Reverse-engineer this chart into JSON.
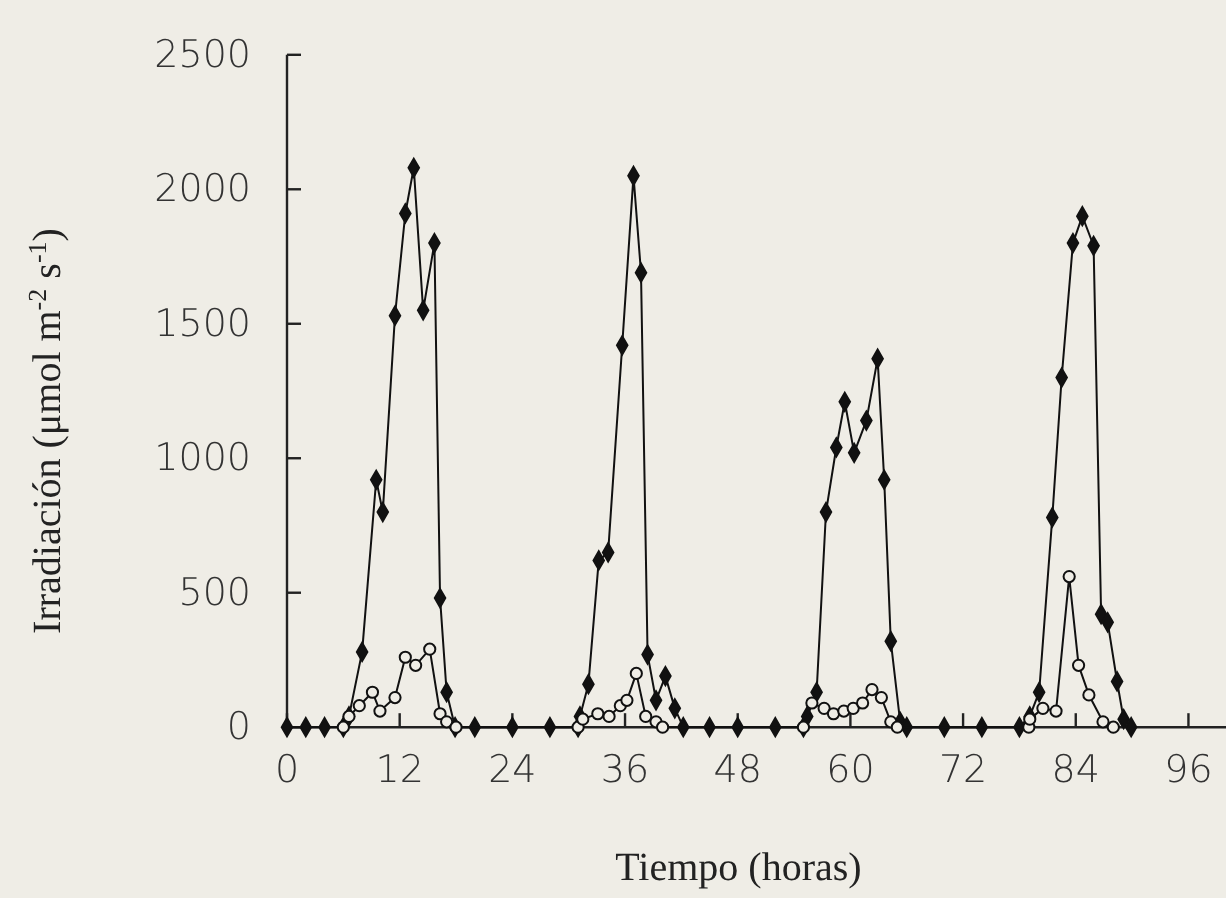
{
  "chart_data": {
    "type": "line",
    "xlabel": "Tiempo (horas)",
    "ylabel": "Irradiación (μmol m$^{-2}$ s$^{-1}$)",
    "xlim": [
      0,
      100
    ],
    "xticks": [
      0,
      12,
      24,
      36,
      48,
      60,
      72,
      84,
      96
    ],
    "ylim": [
      0,
      2500
    ],
    "yticks": [
      0,
      500,
      1000,
      1500,
      2000,
      2500
    ],
    "grid": false,
    "line_style": "solid",
    "series": [
      {
        "color": "#111111",
        "marker": "diamond",
        "x": [
          0,
          2,
          4,
          6,
          6.6,
          8.0,
          9.5,
          10.2,
          11.5,
          12.6,
          13.5,
          14.5,
          15.7,
          16.3,
          17.0,
          17.9,
          20,
          24,
          28,
          31,
          31.2,
          32.1,
          33.2,
          34.2,
          35.7,
          36.9,
          37.7,
          38.4,
          39.3,
          40.3,
          41.3,
          42.2,
          45,
          48,
          52,
          55,
          55.4,
          56.4,
          57.4,
          58.5,
          59.4,
          60.4,
          61.7,
          62.9,
          63.6,
          64.3,
          65.3,
          66,
          70,
          74,
          78,
          79.1,
          80.1,
          81.5,
          82.5,
          83.7,
          84.7,
          85.9,
          86.7,
          87.4,
          88.4,
          89.1,
          89.9
        ],
        "values": [
          0,
          0,
          0,
          0,
          40,
          280,
          920,
          800,
          1530,
          1910,
          2080,
          1550,
          1800,
          480,
          130,
          0,
          0,
          0,
          0,
          0,
          40,
          160,
          620,
          650,
          1420,
          2050,
          1690,
          270,
          100,
          190,
          70,
          0,
          0,
          0,
          0,
          0,
          40,
          130,
          800,
          1040,
          1210,
          1020,
          1140,
          1370,
          920,
          320,
          20,
          0,
          0,
          0,
          0,
          40,
          130,
          780,
          1300,
          1800,
          1900,
          1790,
          420,
          390,
          170,
          30,
          0
        ]
      },
      {
        "color": "#111111",
        "marker": "circle",
        "x": [
          6,
          6.6,
          7.7,
          9.1,
          9.9,
          11.5,
          12.6,
          13.7,
          15.2,
          16.3,
          17.0,
          18,
          31,
          31.5,
          33.1,
          34.3,
          35.5,
          36.2,
          37.2,
          38.2,
          39.3,
          40,
          55,
          55.9,
          57.2,
          58.2,
          59.3,
          60.3,
          61.3,
          62.3,
          63.3,
          64.3,
          65,
          79,
          79.1,
          80.5,
          81.9,
          83.3,
          84.3,
          85.4,
          86.9,
          88
        ],
        "values": [
          0,
          40,
          80,
          130,
          60,
          110,
          260,
          230,
          290,
          50,
          20,
          0,
          0,
          30,
          50,
          40,
          80,
          100,
          200,
          40,
          20,
          0,
          0,
          90,
          70,
          50,
          60,
          70,
          90,
          140,
          110,
          20,
          0,
          0,
          30,
          70,
          60,
          560,
          230,
          120,
          20,
          0
        ]
      }
    ]
  }
}
